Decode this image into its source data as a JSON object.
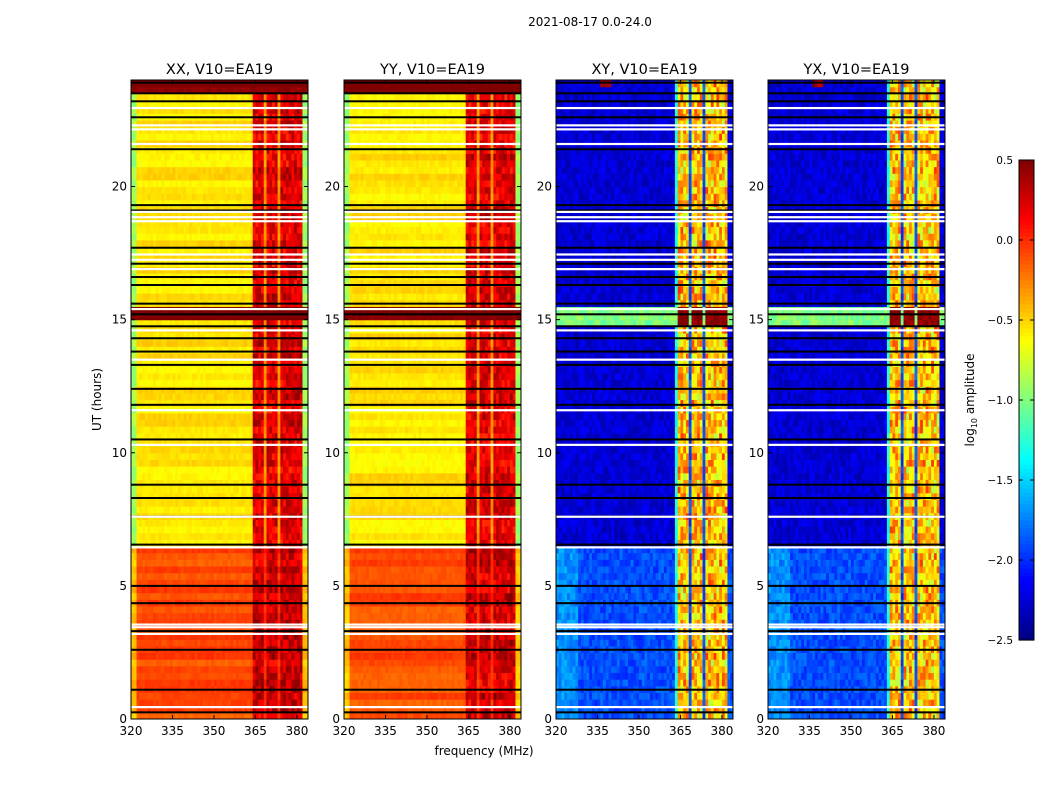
{
  "chart_data": {
    "type": "heatmap",
    "suptitle": "2021-08-17 0.0-24.0",
    "xlabel": "frequency (MHz)",
    "ylabel": "UT (hours)",
    "xlim": [
      320,
      384
    ],
    "ylim": [
      0,
      24
    ],
    "xticks": [
      320,
      335,
      350,
      365,
      380
    ],
    "yticks": [
      0,
      5,
      10,
      15,
      20
    ],
    "colorbar": {
      "label": "log10 amplitude",
      "label_main": "log",
      "label_sub": "10",
      "label_tail": " amplitude",
      "colormap": "jet",
      "range": [
        -2.5,
        0.5
      ],
      "ticks": [
        0.5,
        0.0,
        -0.5,
        -1.0,
        -1.5,
        -2.0,
        -2.5
      ],
      "tick_labels": [
        "0.5",
        "0.0",
        "−0.5",
        "−1.0",
        "−1.5",
        "−2.0",
        "−2.5"
      ]
    },
    "panels": [
      {
        "title": "XX, V10=EA19",
        "kind": "parallel",
        "ylabel_shown": true
      },
      {
        "title": "YY, V10=EA19",
        "kind": "parallel",
        "ylabel_shown": false
      },
      {
        "title": "XY, V10=EA19",
        "kind": "cross",
        "ylabel_shown": false
      },
      {
        "title": "YX, V10=EA19",
        "kind": "cross",
        "ylabel_shown": false
      }
    ],
    "bright_bands_mhz": [
      [
        363.5,
        368.5
      ],
      [
        368.5,
        373.5
      ],
      [
        373.5,
        378
      ],
      [
        378,
        382
      ]
    ],
    "flagged_black_hours": [
      0.25,
      1.1,
      2.6,
      3.3,
      4.35,
      5.0,
      6.55,
      7.6,
      8.3,
      8.8,
      10.5,
      11.8,
      12.4,
      13.3,
      13.8,
      14.3,
      14.75,
      15.2,
      15.6,
      16.3,
      16.6,
      17.1,
      17.7,
      19.3,
      19.1,
      21.4,
      22.6,
      23.2,
      23.5,
      23.9
    ],
    "flagged_white_hours": [
      0.45,
      3.55,
      3.45,
      3.2,
      6.45,
      7.6,
      10.3,
      11.6,
      13.5,
      14.6,
      15.4,
      16.9,
      17.45,
      17.25,
      18.7,
      18.85,
      19.05,
      21.6,
      22.15,
      22.3,
      22.95
    ],
    "parallel_levels": {
      "0-6.5h": -0.1,
      "6.5-24h": -0.55,
      "bands": 0.2
    },
    "cross_levels": {
      "background": -2.2,
      "bands": -0.5
    }
  }
}
